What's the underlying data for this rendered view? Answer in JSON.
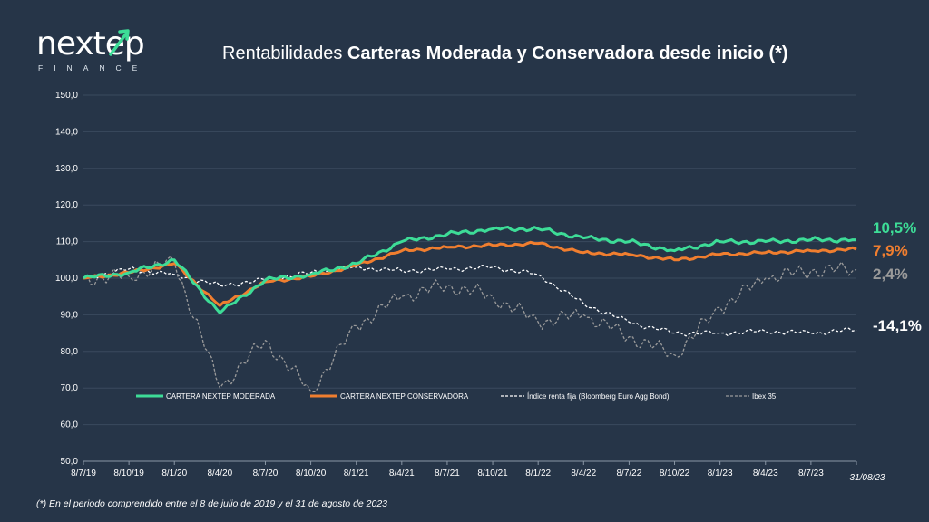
{
  "logo": {
    "word": "nextep",
    "sub": "FINANCE"
  },
  "title": {
    "prefix": "Rentabilidades ",
    "bold": "Carteras Moderada y Conservadora desde inicio (*)"
  },
  "footnote": "(*) En el periodo comprendido entre el 8 de julio de 2019 y el 31 de agosto de 2023",
  "colors": {
    "background": "#263548",
    "moderada": "#3ddc97",
    "conservadora": "#f07e2f",
    "renta_fija": "#ffffff",
    "ibex": "#9a9a9a"
  },
  "chart_data": {
    "type": "line",
    "title": "Rentabilidades Carteras Moderada y Conservadora desde inicio (*)",
    "ylim": [
      50,
      150
    ],
    "yticks": [
      "50,0",
      "60,0",
      "70,0",
      "80,0",
      "90,0",
      "100,0",
      "110,0",
      "120,0",
      "130,0",
      "140,0",
      "150,0"
    ],
    "ytick_values": [
      50,
      60,
      70,
      80,
      90,
      100,
      110,
      120,
      130,
      140,
      150
    ],
    "x_categories": [
      "8/7/19",
      "8/10/19",
      "8/1/20",
      "8/4/20",
      "8/7/20",
      "8/10/20",
      "8/1/21",
      "8/4/21",
      "8/7/21",
      "8/10/21",
      "8/1/22",
      "8/4/22",
      "8/7/22",
      "8/10/22",
      "8/1/23",
      "8/4/23",
      "8/7/23",
      "31/08/23"
    ],
    "legend_position": "bottom-inside",
    "series": [
      {
        "name": "CARTERA NEXTEP MODERADA",
        "end_label": "10,5%",
        "style": "solid",
        "values": [
          100,
          101.5,
          105,
          90.5,
          99.5,
          101,
          104,
          110,
          112,
          113.5,
          113.5,
          111,
          110,
          107.5,
          110,
          110,
          110.5,
          110.5
        ]
      },
      {
        "name": "CARTERA NEXTEP CONSERVADORA",
        "end_label": "7,9%",
        "style": "solid",
        "values": [
          100,
          101.5,
          104,
          92.5,
          99,
          100.5,
          103.5,
          107.5,
          108.5,
          109,
          109.5,
          107,
          106.5,
          105,
          106.5,
          107,
          107.5,
          107.9
        ]
      },
      {
        "name": "Índice renta fija (Bloomberg Euro Agg Bond)",
        "end_label": "-14,1%",
        "style": "dashed",
        "values": [
          100,
          102.5,
          101,
          98,
          99.5,
          101.5,
          103,
          102,
          102.5,
          103,
          101,
          93,
          88,
          85,
          85,
          85.5,
          85,
          85.9
        ]
      },
      {
        "name": "Ibex 35",
        "end_label": "2,4%",
        "style": "dashed",
        "values": [
          100,
          100.5,
          104.5,
          70,
          83,
          69,
          87,
          95,
          98,
          95,
          88,
          90,
          84,
          79,
          92,
          100,
          102,
          102.4
        ]
      }
    ]
  }
}
